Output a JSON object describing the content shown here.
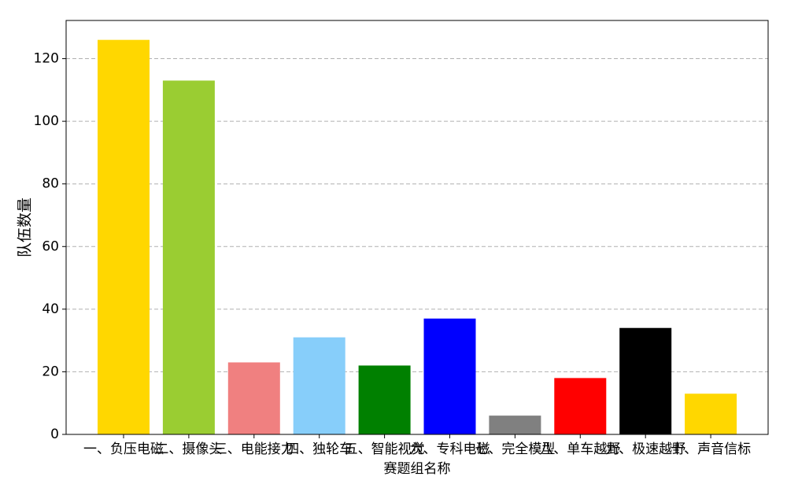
{
  "chart_data": {
    "type": "bar",
    "x_label": "赛题组名称",
    "y_label": "队伍数量",
    "categories": [
      "一、负压电磁",
      "二、摄像头",
      "三、电能接力",
      "四、独轮车",
      "五、智能视觉",
      "六、专科电磁",
      "七、完全模型",
      "八、单车越野",
      "九、极速越野",
      "十、声音信标"
    ],
    "values": [
      126,
      113,
      23,
      31,
      22,
      37,
      6,
      18,
      34,
      13
    ],
    "colors": [
      "#ffd700",
      "#9acd32",
      "#f08080",
      "#87cefa",
      "#008000",
      "#0000ff",
      "#808080",
      "#ff0000",
      "#000000",
      "#ffd700"
    ],
    "ylim": [
      0,
      132.2
    ],
    "yticks": [
      0,
      20,
      40,
      60,
      80,
      100,
      120
    ],
    "grid": true
  }
}
